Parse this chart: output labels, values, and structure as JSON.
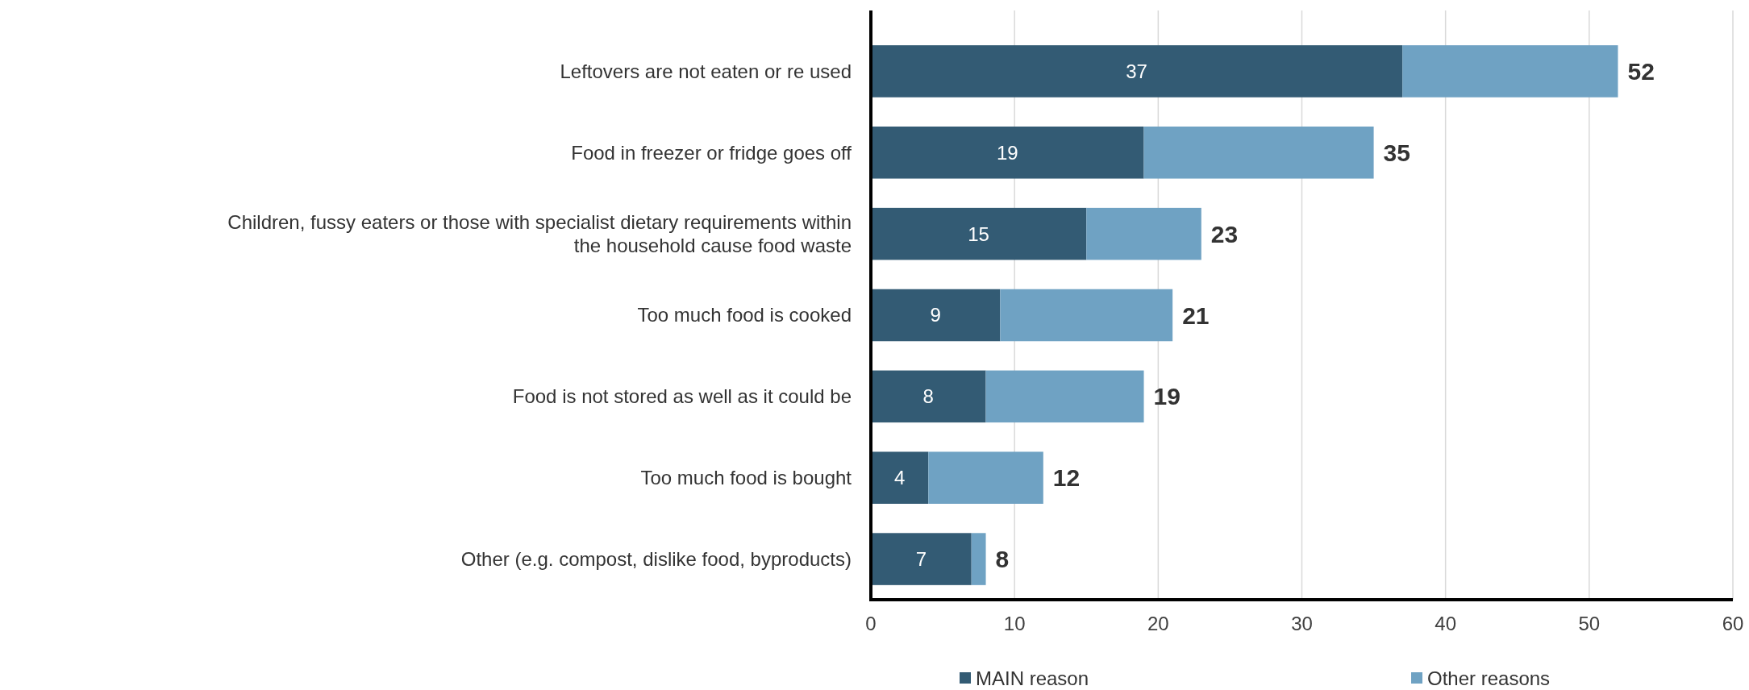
{
  "chart_data": {
    "type": "bar",
    "orientation": "horizontal",
    "stacked": true,
    "categories": [
      "Leftovers are not eaten or re used",
      "Food in freezer or fridge goes off",
      "Children, fussy eaters or those with specialist dietary requirements within the household cause food waste",
      "Too much food is cooked",
      "Food is not stored as well as it could be",
      "Too much food is bought",
      "Other (e.g. compost, dislike food, byproducts)"
    ],
    "series": [
      {
        "name": "MAIN reason",
        "color": "#335b74",
        "values": [
          37,
          19,
          15,
          9,
          8,
          4,
          7
        ],
        "value_labels": [
          "37",
          "19",
          "15",
          "9",
          "8",
          "4",
          "7"
        ]
      },
      {
        "name": "Other reasons",
        "color": "#6fa2c3",
        "values": [
          15,
          16,
          8,
          12,
          11,
          8,
          1
        ]
      }
    ],
    "totals": [
      "52",
      "35",
      "23",
      "21",
      "19",
      "12",
      "8"
    ],
    "xlim": [
      0,
      60
    ],
    "xticks": [
      0,
      10,
      20,
      30,
      40,
      50,
      60
    ],
    "grid": "x",
    "legend": "bottom"
  }
}
